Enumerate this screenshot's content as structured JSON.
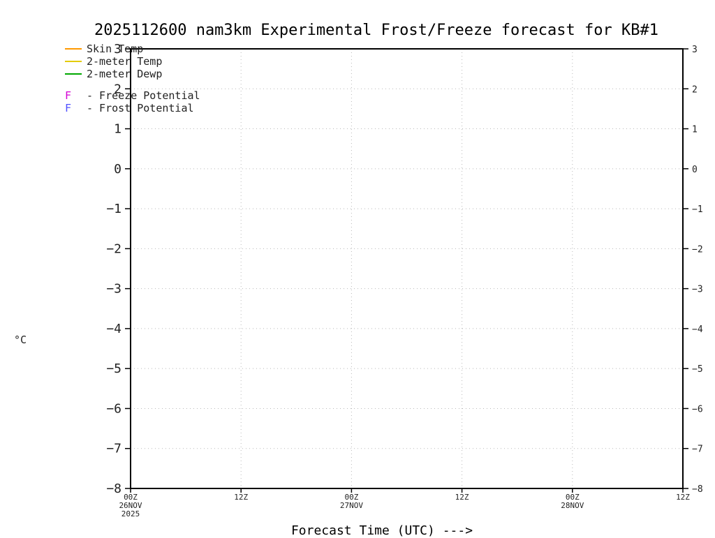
{
  "title": "2025112600 nam3km Experimental Frost/Freeze forecast for KB#1",
  "y_axis_unit": "°C",
  "x_axis_label": "Forecast Time (UTC) --->",
  "legend": {
    "series": [
      {
        "label": "Skin Temp",
        "color": "#ff9900"
      },
      {
        "label": "2-meter Temp",
        "color": "#e3cc00"
      },
      {
        "label": "2-meter Dewp",
        "color": "#00a800"
      }
    ],
    "potentials": [
      {
        "symbol": "F",
        "label": "- Freeze Potential",
        "color": "#d400d4"
      },
      {
        "symbol": "F",
        "label": "- Frost Potential",
        "color": "#5050ff"
      }
    ]
  },
  "chart_data": {
    "type": "line",
    "title": "2025112600 nam3km Experimental Frost/Freeze forecast for KB#1",
    "xlabel": "Forecast Time (UTC) --->",
    "ylabel": "°C",
    "ylim": [
      -8,
      3
    ],
    "y_ticks": [
      3,
      2,
      1,
      0,
      -1,
      -2,
      -3,
      -4,
      -5,
      -6,
      -7,
      -8
    ],
    "x_ticks": [
      {
        "label": "00Z",
        "sublabels": [
          "26NOV",
          "2025"
        ]
      },
      {
        "label": "12Z",
        "sublabels": []
      },
      {
        "label": "00Z",
        "sublabels": [
          "27NOV"
        ]
      },
      {
        "label": "12Z",
        "sublabels": []
      },
      {
        "label": "00Z",
        "sublabels": [
          "28NOV"
        ]
      },
      {
        "label": "12Z",
        "sublabels": []
      }
    ],
    "grid": true,
    "legend_position": "top-left",
    "series": [
      {
        "name": "Skin Temp",
        "color": "#ff9900",
        "values": []
      },
      {
        "name": "2-meter Temp",
        "color": "#e3cc00",
        "values": []
      },
      {
        "name": "2-meter Dewp",
        "color": "#00a800",
        "values": []
      }
    ],
    "freeze_frost_markers": []
  }
}
